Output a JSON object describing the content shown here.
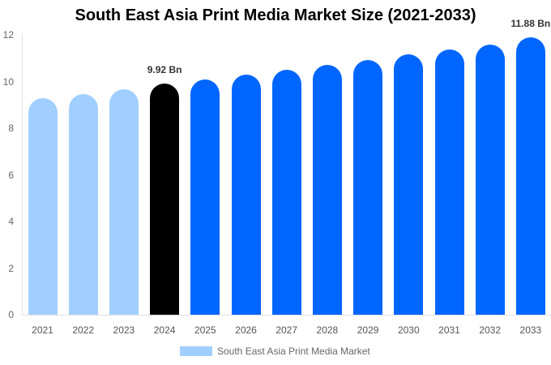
{
  "chart_data": {
    "type": "bar",
    "title": "South East Asia Print Media Market Size (2021-2033)",
    "xlabel": "",
    "ylabel": "",
    "ylim": [
      0,
      12
    ],
    "yticks": [
      0,
      2,
      4,
      6,
      8,
      10,
      12
    ],
    "grid": false,
    "legend_position": "bottom",
    "categories": [
      "2021",
      "2022",
      "2023",
      "2024",
      "2025",
      "2026",
      "2027",
      "2028",
      "2029",
      "2030",
      "2031",
      "2032",
      "2033"
    ],
    "series": [
      {
        "name": "South East Asia Print Media Market",
        "values": [
          9.29,
          9.46,
          9.67,
          9.92,
          10.09,
          10.3,
          10.5,
          10.71,
          10.92,
          11.16,
          11.37,
          11.58,
          11.88
        ],
        "colors": [
          "#a0cfff",
          "#a0cfff",
          "#a0cfff",
          "#000000",
          "#0066ff",
          "#0066ff",
          "#0066ff",
          "#0066ff",
          "#0066ff",
          "#0066ff",
          "#0066ff",
          "#0066ff",
          "#0066ff"
        ]
      }
    ],
    "annotations": [
      {
        "category": "2024",
        "text": "9.92 Bn"
      },
      {
        "category": "2033",
        "text": "11.88 Bn"
      }
    ]
  },
  "legend": {
    "label": "South East Asia Print Media Market",
    "color": "#a0cfff"
  }
}
